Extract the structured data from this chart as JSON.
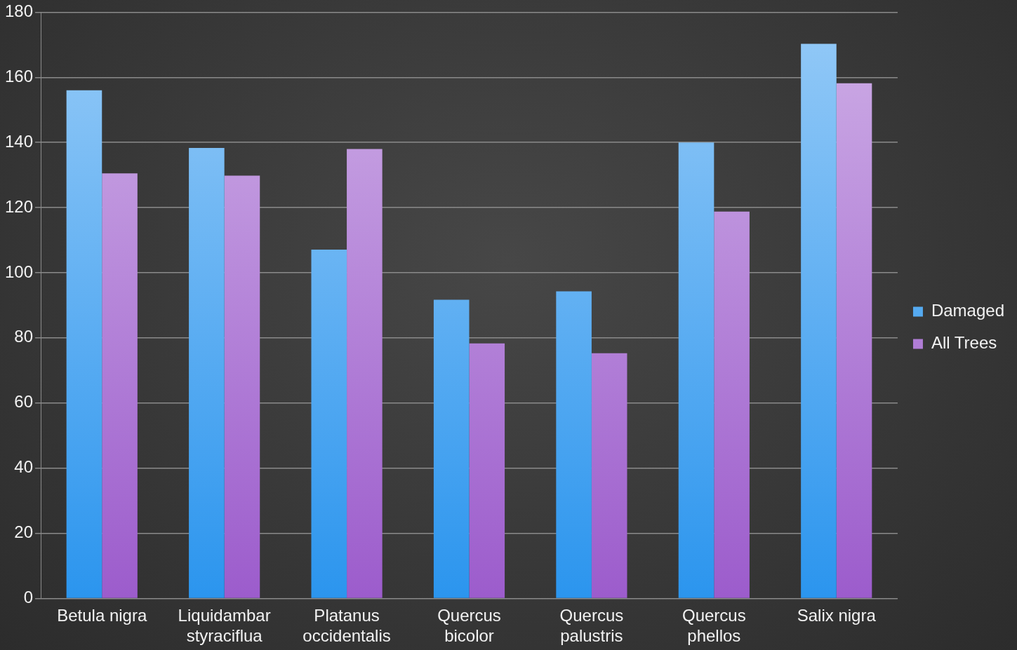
{
  "chart_data": {
    "type": "bar",
    "categories": [
      "Betula nigra",
      "Liquidambar styraciflua",
      "Platanus occidentalis",
      "Quercus bicolor",
      "Quercus palustris",
      "Quercus phellos",
      "Salix nigra"
    ],
    "series": [
      {
        "name": "Damaged",
        "color": "#2b95ee",
        "values": [
          156,
          138.3,
          107.1,
          91.7,
          94.3,
          140,
          170.3
        ]
      },
      {
        "name": "All Trees",
        "color": "#9c5ccc",
        "values": [
          130.5,
          129.8,
          138,
          78.3,
          75.3,
          118.8,
          158.2
        ]
      }
    ],
    "ylim": [
      0,
      180
    ],
    "yticks": [
      0,
      20,
      40,
      60,
      80,
      100,
      120,
      140,
      160,
      180
    ],
    "grid": "y",
    "legend": "right"
  }
}
